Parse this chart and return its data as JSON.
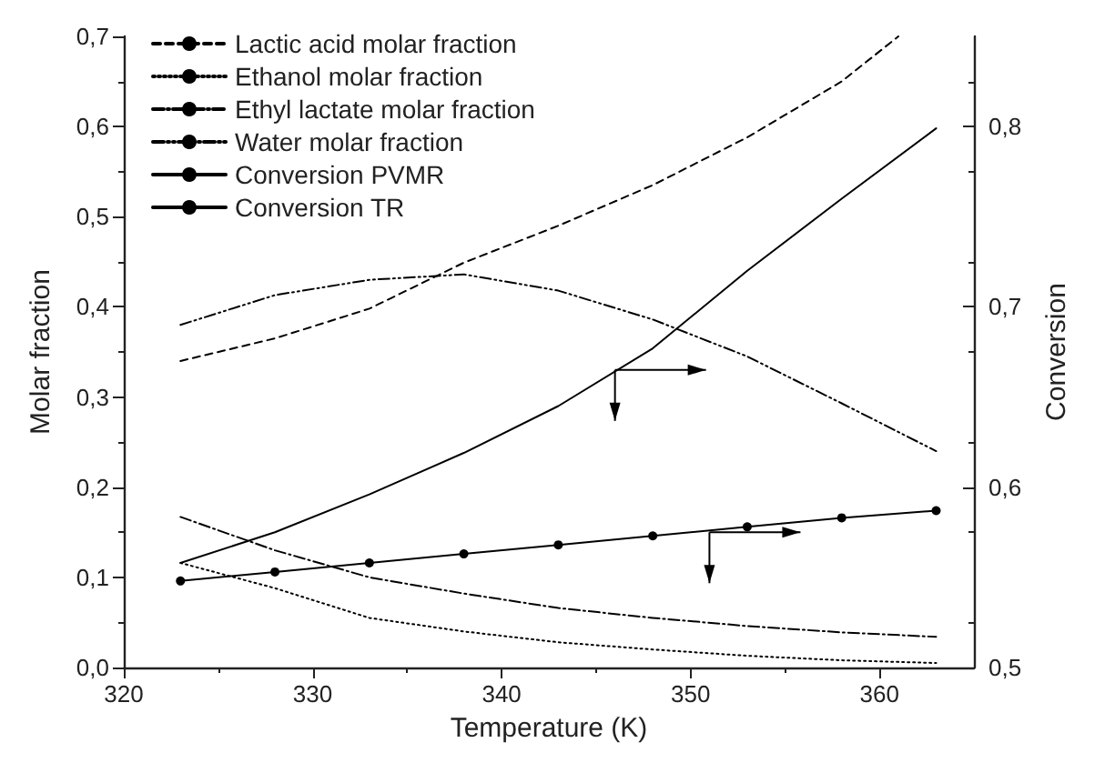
{
  "chart_data": {
    "type": "line",
    "xlabel": "Temperature (K)",
    "ylabel": "Molar fraction",
    "y2label": "Conversion",
    "x": [
      323,
      328,
      333,
      338,
      343,
      348,
      353,
      358,
      363
    ],
    "series": [
      {
        "name": "Lactic acid molar fraction",
        "color": "#000000",
        "line_style": "dashed",
        "marker": "none",
        "x": [
          323,
          328,
          333,
          338,
          343,
          348,
          353,
          358,
          361
        ],
        "values": [
          0.34,
          0.365,
          0.398,
          0.449,
          0.49,
          0.535,
          0.588,
          0.65,
          0.7
        ]
      },
      {
        "name": "Ethanol molar fraction",
        "color": "#000000",
        "line_style": "dotted",
        "marker": "none",
        "values": [
          0.116,
          0.088,
          0.055,
          0.04,
          0.028,
          0.02,
          0.013,
          0.008,
          0.005
        ]
      },
      {
        "name": "Ethyl lactate molar fraction",
        "color": "#000000",
        "line_style": "dashdot",
        "marker": "none",
        "values": [
          0.167,
          0.13,
          0.1,
          0.082,
          0.066,
          0.055,
          0.046,
          0.039,
          0.034
        ]
      },
      {
        "name": "Water molar fraction",
        "color": "#000000",
        "line_style": "dashdotdot",
        "marker": "none",
        "values": [
          0.38,
          0.413,
          0.43,
          0.436,
          0.418,
          0.386,
          0.345,
          0.293,
          0.24
        ]
      },
      {
        "name": "Conversion PVMR",
        "color": "#000000",
        "line_style": "solid",
        "marker": "none",
        "axis": "y2",
        "values": [
          0.558,
          0.575,
          0.596,
          0.619,
          0.645,
          0.677,
          0.72,
          0.76,
          0.799
        ]
      },
      {
        "name": "Conversion TR",
        "color": "#000000",
        "line_style": "solid",
        "marker": "circle",
        "axis": "y2",
        "values": [
          0.548,
          0.553,
          0.558,
          0.563,
          0.568,
          0.573,
          0.578,
          0.583,
          0.587
        ]
      }
    ],
    "xlim": [
      320,
      365
    ],
    "xticks": [
      320,
      330,
      340,
      350,
      360
    ],
    "ylim": [
      0,
      0.7
    ],
    "yticks": [
      {
        "value": 0,
        "label": "0,0"
      },
      {
        "value": 0.1,
        "label": "0,1"
      },
      {
        "value": 0.2,
        "label": "0,2"
      },
      {
        "value": 0.3,
        "label": "0,3"
      },
      {
        "value": 0.4,
        "label": "0,4"
      },
      {
        "value": 0.5,
        "label": "0,5"
      },
      {
        "value": 0.6,
        "label": "0,6"
      },
      {
        "value": 0.7,
        "label": "0,7"
      }
    ],
    "y2lim": [
      0.5,
      0.85
    ],
    "y2ticks": [
      {
        "value": 0.5,
        "label": "0,5"
      },
      {
        "value": 0.6,
        "label": "0,6"
      },
      {
        "value": 0.7,
        "label": "0,7"
      },
      {
        "value": 0.8,
        "label": "0,8"
      }
    ],
    "grid": false,
    "legend": "top left"
  }
}
